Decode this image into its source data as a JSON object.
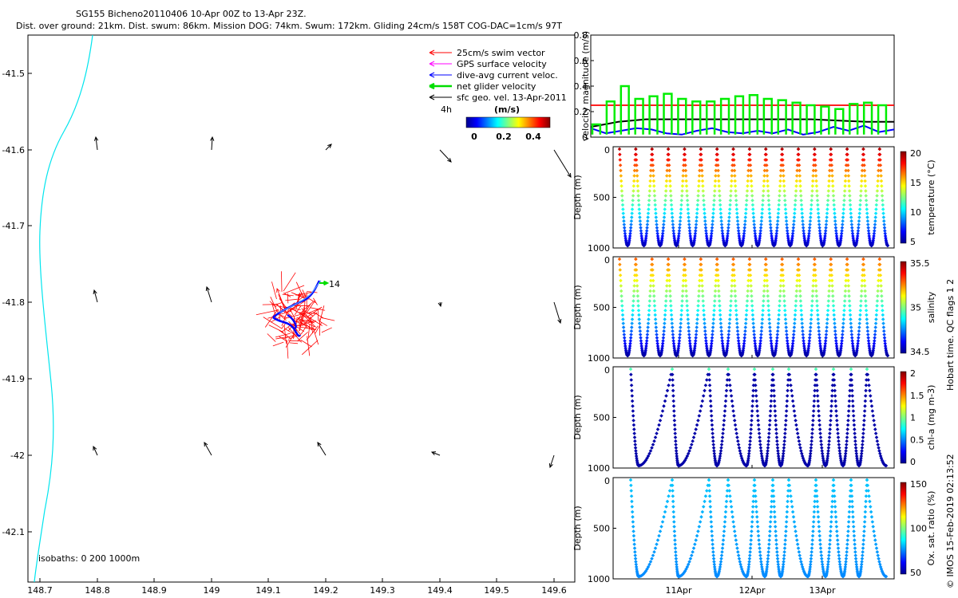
{
  "header": {
    "title_line1": "SG155 Bicheno20110406 10-Apr 00Z to 13-Apr 23Z.",
    "title_line2": "Dist. over ground: 21km. Dist. swum: 86km. Mission DOG: 74km. Swum: 172km. Gliding 24cm/s 158T COG-DAC=1cm/s 97T"
  },
  "colors": {
    "swim": "#ff0000",
    "gps": "#ff00ff",
    "dac": "#0000ff",
    "net": "#00dd00",
    "geo": "#000000",
    "coast": "#00e5ee",
    "speed_red": "#ff0000",
    "speed_black": "#000000",
    "speed_blue": "#0000ff",
    "speed_green": "#00ee00"
  },
  "map": {
    "legend": [
      {
        "label": "25cm/s swim vector",
        "color": "#ff0000"
      },
      {
        "label": "GPS surface velocity",
        "color": "#ff00ff"
      },
      {
        "label": "dive-avg current veloc.",
        "color": "#0000ff"
      },
      {
        "label": "net glider velocity",
        "color": "#00dd00"
      },
      {
        "label": "sfc geo. vel. 13-Apr-2011",
        "color": "#000000"
      }
    ],
    "interval_label": "4h",
    "colorbar_title": "(m/s)",
    "colorbar_ticks": [
      "0",
      "0.2",
      "0.4"
    ],
    "isobaths_label": "isobaths: 0   200  1000m",
    "glider_label": "14",
    "x_ticks": [
      "148.7",
      "148.8",
      "148.9",
      "149",
      "149.1",
      "149.2",
      "149.3",
      "149.4",
      "149.5",
      "149.6"
    ],
    "y_ticks": [
      "-41.5",
      "-41.6",
      "-41.7",
      "-41.8",
      "-41.9",
      "-42",
      "-42.1"
    ]
  },
  "chart_data": [
    {
      "type": "line",
      "panel": "velocity",
      "ylabel": "velocity magnitude (m/s)",
      "ylim": [
        0,
        0.8
      ],
      "y_ticks": [
        "0",
        "0.2",
        "0.4",
        "0.6",
        "0.8"
      ],
      "series": [
        {
          "color": "red",
          "values": [
            0.25,
            0.25
          ]
        },
        {
          "color": "black",
          "values": [
            0.08,
            0.12,
            0.14,
            0.14,
            0.14,
            0.14,
            0.14,
            0.14,
            0.14,
            0.13,
            0.12,
            0.12
          ]
        },
        {
          "color": "blue",
          "values": [
            0.07,
            0.03,
            0.05,
            0.07,
            0.06,
            0.03,
            0.02,
            0.05,
            0.07,
            0.04,
            0.03,
            0.05,
            0.03,
            0.06,
            0.02,
            0.04,
            0.08,
            0.05,
            0.09,
            0.04,
            0.06
          ]
        },
        {
          "color": "green",
          "values": [
            0.1,
            0.28,
            0.4,
            0.3,
            0.32,
            0.34,
            0.3,
            0.28,
            0.28,
            0.3,
            0.32,
            0.33,
            0.3,
            0.29,
            0.27,
            0.25,
            0.24,
            0.22,
            0.26,
            0.27,
            0.25
          ]
        }
      ]
    },
    {
      "type": "scatter",
      "panel": "temperature",
      "ylabel": "Depth (m)",
      "y_ticks": [
        "0",
        "500",
        "1000"
      ],
      "colorbar_label": "temperature (°C)",
      "colorbar_ticks": [
        "20",
        "15",
        "10",
        "5"
      ],
      "ylim": [
        1000,
        0
      ]
    },
    {
      "type": "scatter",
      "panel": "salinity",
      "ylabel": "Depth (m)",
      "y_ticks": [
        "0",
        "500",
        "1000"
      ],
      "colorbar_label": "salinity",
      "colorbar_ticks": [
        "35.5",
        "35",
        "34.5"
      ],
      "ylim": [
        1000,
        0
      ]
    },
    {
      "type": "scatter",
      "panel": "chla",
      "ylabel": "Depth (m)",
      "y_ticks": [
        "0",
        "500",
        "1000"
      ],
      "colorbar_label": "chl-a (mg m-3)",
      "colorbar_ticks": [
        "2",
        "1.5",
        "1",
        "0.5",
        "0"
      ],
      "ylim": [
        1000,
        0
      ]
    },
    {
      "type": "scatter",
      "panel": "oxygen",
      "ylabel": "Depth (m)",
      "y_ticks": [
        "0",
        "500",
        "1000"
      ],
      "colorbar_label": "Ox. sat. ratio (%)",
      "colorbar_ticks": [
        "150",
        "100",
        "50"
      ],
      "ylim": [
        1000,
        0
      ],
      "x_ticks": [
        "11Apr",
        "12Apr",
        "13Apr"
      ]
    }
  ],
  "side_note": "Hobart time. QC flags 1  2",
  "copyright": "© IMOS 15-Feb-2019 02:13:52"
}
